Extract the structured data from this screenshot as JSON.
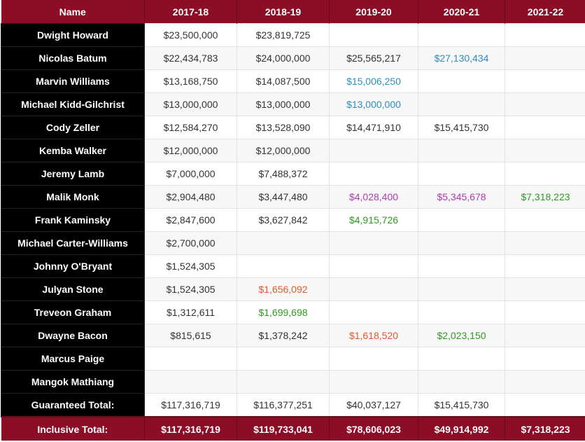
{
  "header": {
    "name": "Name",
    "years": [
      "2017-18",
      "2018-19",
      "2019-20",
      "2020-21",
      "2021-22"
    ]
  },
  "colors": {
    "header_bg": "#8b0d26",
    "name_bg": "#000000",
    "team_option": "#2b8fc0",
    "rookie_option": "#b03ab0",
    "player_option": "#2e9c1f",
    "non_guaranteed": "#e8572a"
  },
  "rows": [
    {
      "name": "Dwight Howard",
      "cells": [
        {
          "v": "$23,500,000",
          "c": ""
        },
        {
          "v": "$23,819,725",
          "c": ""
        },
        {
          "v": "",
          "c": ""
        },
        {
          "v": "",
          "c": ""
        },
        {
          "v": "",
          "c": ""
        }
      ]
    },
    {
      "name": "Nicolas Batum",
      "cells": [
        {
          "v": "$22,434,783",
          "c": ""
        },
        {
          "v": "$24,000,000",
          "c": ""
        },
        {
          "v": "$25,565,217",
          "c": ""
        },
        {
          "v": "$27,130,434",
          "c": "blue"
        },
        {
          "v": "",
          "c": ""
        }
      ]
    },
    {
      "name": "Marvin Williams",
      "cells": [
        {
          "v": "$13,168,750",
          "c": ""
        },
        {
          "v": "$14,087,500",
          "c": ""
        },
        {
          "v": "$15,006,250",
          "c": "blue"
        },
        {
          "v": "",
          "c": ""
        },
        {
          "v": "",
          "c": ""
        }
      ]
    },
    {
      "name": "Michael Kidd-Gilchrist",
      "cells": [
        {
          "v": "$13,000,000",
          "c": ""
        },
        {
          "v": "$13,000,000",
          "c": ""
        },
        {
          "v": "$13,000,000",
          "c": "blue"
        },
        {
          "v": "",
          "c": ""
        },
        {
          "v": "",
          "c": ""
        }
      ]
    },
    {
      "name": "Cody Zeller",
      "cells": [
        {
          "v": "$12,584,270",
          "c": ""
        },
        {
          "v": "$13,528,090",
          "c": ""
        },
        {
          "v": "$14,471,910",
          "c": ""
        },
        {
          "v": "$15,415,730",
          "c": ""
        },
        {
          "v": "",
          "c": ""
        }
      ]
    },
    {
      "name": "Kemba Walker",
      "cells": [
        {
          "v": "$12,000,000",
          "c": ""
        },
        {
          "v": "$12,000,000",
          "c": ""
        },
        {
          "v": "",
          "c": ""
        },
        {
          "v": "",
          "c": ""
        },
        {
          "v": "",
          "c": ""
        }
      ]
    },
    {
      "name": "Jeremy Lamb",
      "cells": [
        {
          "v": "$7,000,000",
          "c": ""
        },
        {
          "v": "$7,488,372",
          "c": ""
        },
        {
          "v": "",
          "c": ""
        },
        {
          "v": "",
          "c": ""
        },
        {
          "v": "",
          "c": ""
        }
      ]
    },
    {
      "name": "Malik Monk",
      "cells": [
        {
          "v": "$2,904,480",
          "c": ""
        },
        {
          "v": "$3,447,480",
          "c": ""
        },
        {
          "v": "$4,028,400",
          "c": "purple"
        },
        {
          "v": "$5,345,678",
          "c": "purple"
        },
        {
          "v": "$7,318,223",
          "c": "green"
        }
      ]
    },
    {
      "name": "Frank Kaminsky",
      "cells": [
        {
          "v": "$2,847,600",
          "c": ""
        },
        {
          "v": "$3,627,842",
          "c": ""
        },
        {
          "v": "$4,915,726",
          "c": "green"
        },
        {
          "v": "",
          "c": ""
        },
        {
          "v": "",
          "c": ""
        }
      ]
    },
    {
      "name": "Michael Carter-Williams",
      "cells": [
        {
          "v": "$2,700,000",
          "c": ""
        },
        {
          "v": "",
          "c": ""
        },
        {
          "v": "",
          "c": ""
        },
        {
          "v": "",
          "c": ""
        },
        {
          "v": "",
          "c": ""
        }
      ]
    },
    {
      "name": "Johnny O'Bryant",
      "cells": [
        {
          "v": "$1,524,305",
          "c": ""
        },
        {
          "v": "",
          "c": ""
        },
        {
          "v": "",
          "c": ""
        },
        {
          "v": "",
          "c": ""
        },
        {
          "v": "",
          "c": ""
        }
      ]
    },
    {
      "name": "Julyan Stone",
      "cells": [
        {
          "v": "$1,524,305",
          "c": ""
        },
        {
          "v": "$1,656,092",
          "c": "orange"
        },
        {
          "v": "",
          "c": ""
        },
        {
          "v": "",
          "c": ""
        },
        {
          "v": "",
          "c": ""
        }
      ]
    },
    {
      "name": "Treveon Graham",
      "cells": [
        {
          "v": "$1,312,611",
          "c": ""
        },
        {
          "v": "$1,699,698",
          "c": "green"
        },
        {
          "v": "",
          "c": ""
        },
        {
          "v": "",
          "c": ""
        },
        {
          "v": "",
          "c": ""
        }
      ]
    },
    {
      "name": "Dwayne Bacon",
      "cells": [
        {
          "v": "$815,615",
          "c": ""
        },
        {
          "v": "$1,378,242",
          "c": ""
        },
        {
          "v": "$1,618,520",
          "c": "orange"
        },
        {
          "v": "$2,023,150",
          "c": "green"
        },
        {
          "v": "",
          "c": ""
        }
      ]
    },
    {
      "name": "Marcus Paige",
      "cells": [
        {
          "v": "",
          "c": ""
        },
        {
          "v": "",
          "c": ""
        },
        {
          "v": "",
          "c": ""
        },
        {
          "v": "",
          "c": ""
        },
        {
          "v": "",
          "c": ""
        }
      ]
    },
    {
      "name": "Mangok Mathiang",
      "cells": [
        {
          "v": "",
          "c": ""
        },
        {
          "v": "",
          "c": ""
        },
        {
          "v": "",
          "c": ""
        },
        {
          "v": "",
          "c": ""
        },
        {
          "v": "",
          "c": ""
        }
      ]
    }
  ],
  "guaranteed": {
    "label": "Guaranteed Total:",
    "values": [
      "$117,316,719",
      "$116,377,251",
      "$40,037,127",
      "$15,415,730",
      ""
    ]
  },
  "inclusive": {
    "label": "Inclusive Total:",
    "values": [
      "$117,316,719",
      "$119,733,041",
      "$78,606,023",
      "$49,914,992",
      "$7,318,223"
    ]
  }
}
